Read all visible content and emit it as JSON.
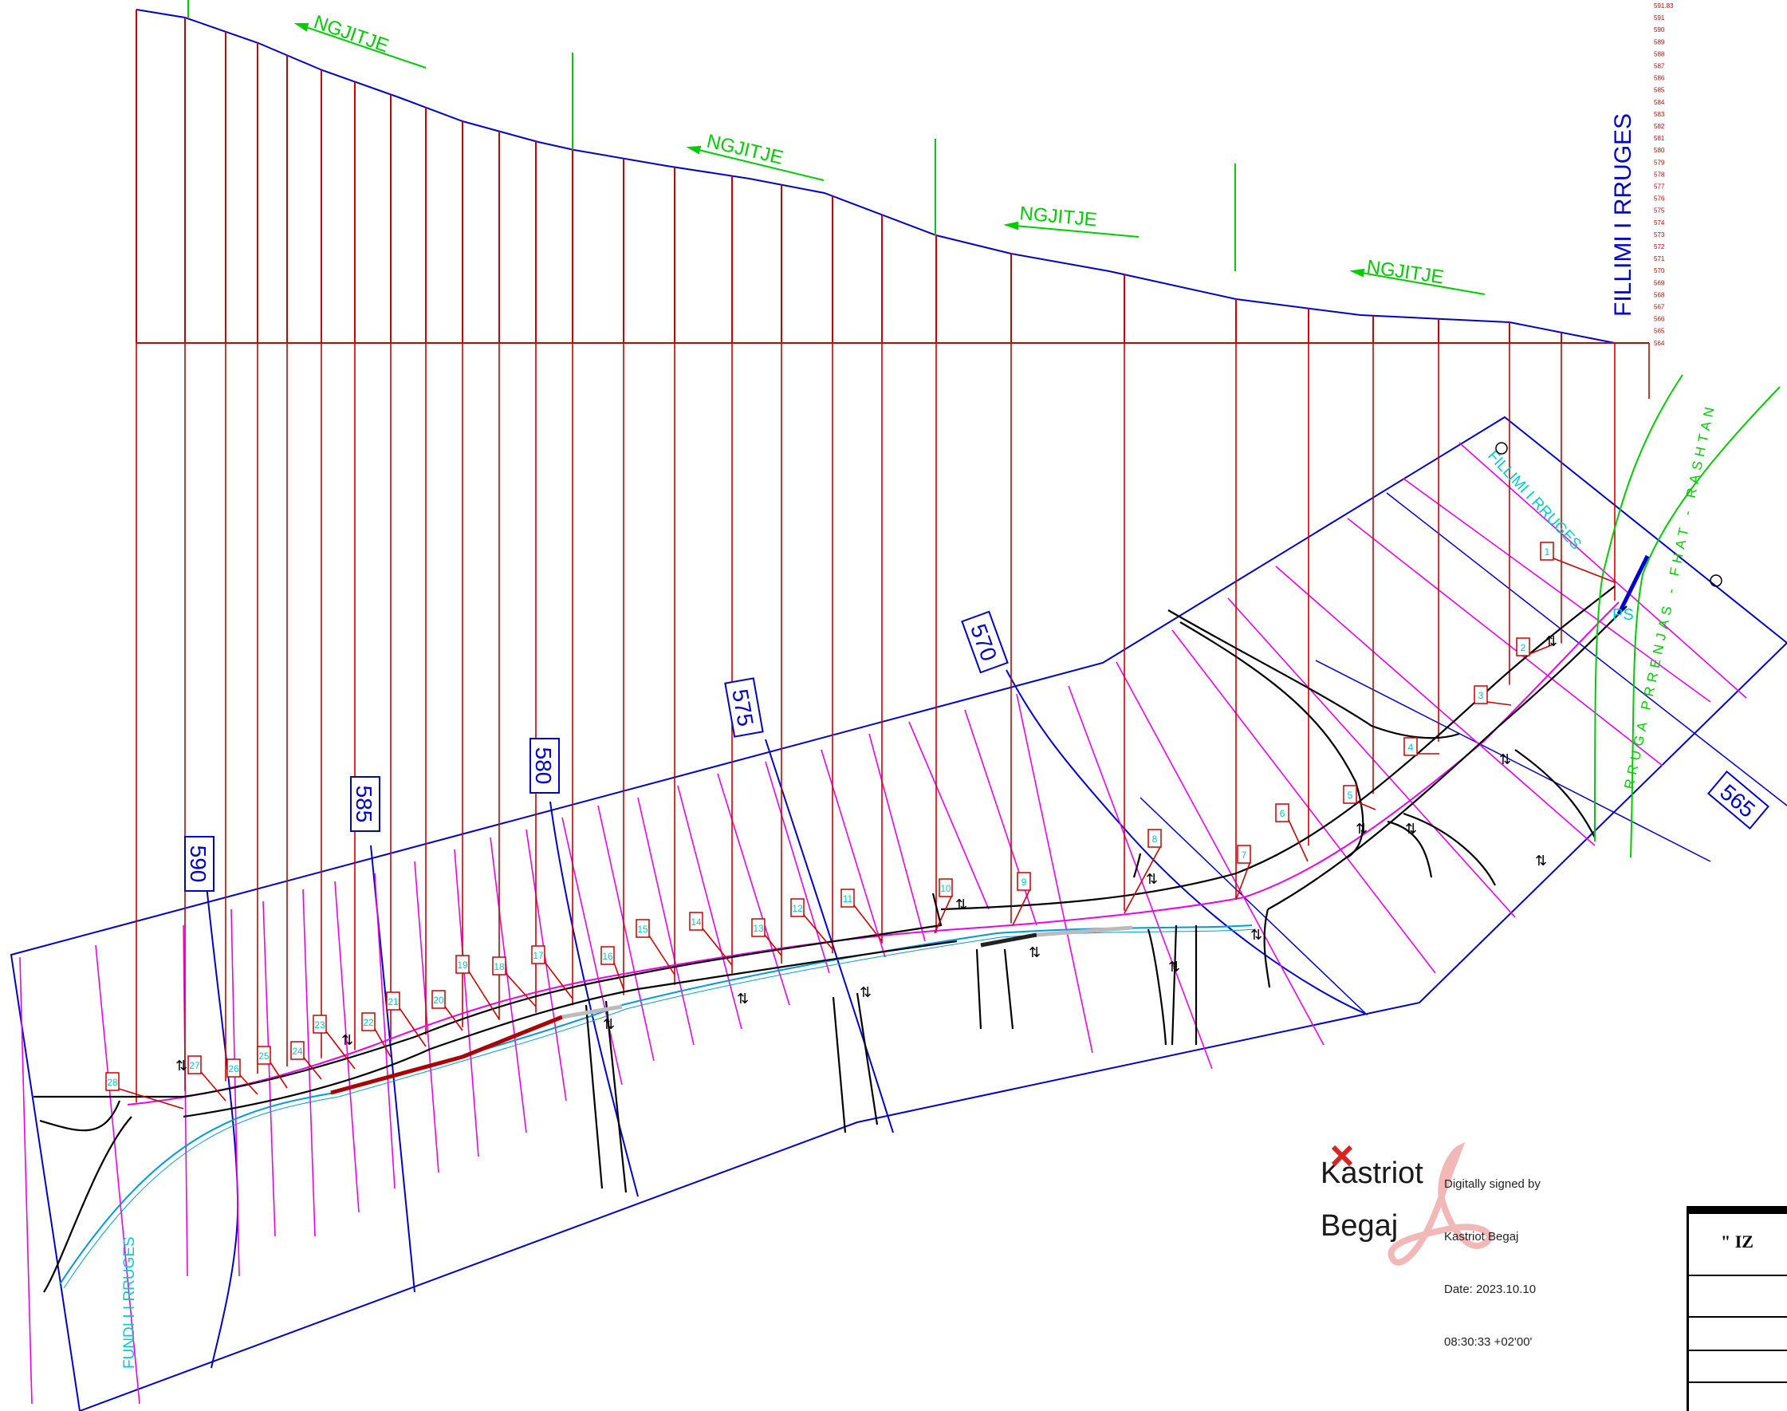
{
  "labels": {
    "ngjitje": [
      "NGJITJE",
      "NGJITJE",
      "NGJITJE",
      "NGJITJE"
    ],
    "fillimi_vertical": "FILLIMI I RRUGES",
    "fillimi_plan": "FILLIMI I RRUGES",
    "fundi_plan": "FUNDI I I RRUGES",
    "ps": "PS",
    "road_name": "RRUGA  PRRENJAS - FHAT - RASHTAN"
  },
  "contours": [
    "590",
    "585",
    "580",
    "575",
    "570",
    "565"
  ],
  "elevation_scale": [
    "591.83",
    "591",
    "590",
    "589",
    "588",
    "587",
    "586",
    "585",
    "584",
    "583",
    "582",
    "581",
    "580",
    "579",
    "578",
    "577",
    "576",
    "575",
    "574",
    "573",
    "572",
    "571",
    "570",
    "569",
    "568",
    "567",
    "566",
    "565",
    "564"
  ],
  "profiles": [
    "1",
    "2",
    "3",
    "4",
    "5",
    "6",
    "7",
    "8",
    "9",
    "10",
    "11",
    "12",
    "13",
    "14",
    "15",
    "16",
    "17",
    "18",
    "19",
    "20",
    "21",
    "22",
    "23",
    "24",
    "25",
    "26",
    "27",
    "28"
  ],
  "signature": {
    "first": "Kastriot",
    "last": "Begaj",
    "lines": [
      "Digitally signed by",
      "Kastriot Begaj",
      "Date: 2023.10.10",
      "08:30:33 +02'00'"
    ]
  },
  "title_block": {
    "heading": "\" IZ"
  },
  "colors": {
    "profile": "#cc0000",
    "terrain": "#0000cc",
    "slope": "#00cc00",
    "magenta": "#ee00ee",
    "cyan": "#00cccc",
    "road": "#000000"
  }
}
